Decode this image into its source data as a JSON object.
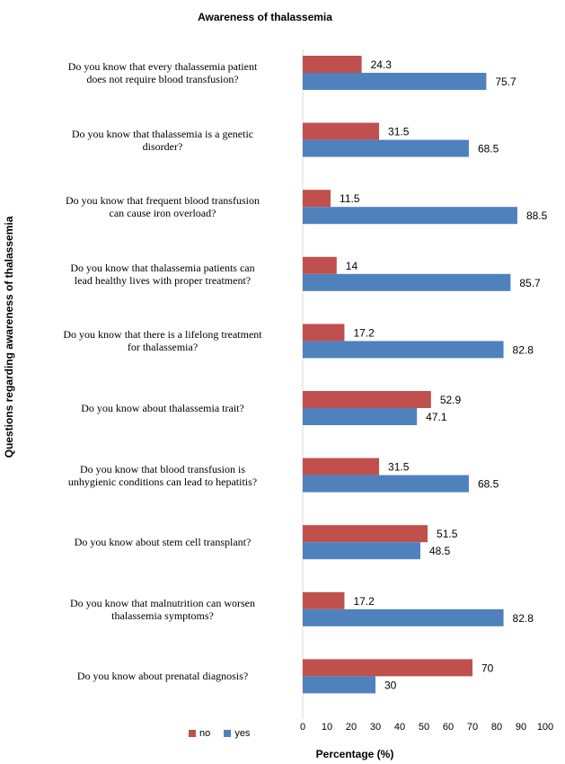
{
  "chart_data": {
    "type": "bar",
    "orientation": "horizontal",
    "title": "Awareness  of thalassemia",
    "xlabel": "Percentage  (%)",
    "ylabel": "Questions regarding awareness  of thalassemia",
    "xlim": [
      0,
      100
    ],
    "xticks": [
      "0",
      "10",
      "20",
      "30",
      "40",
      "50",
      "60",
      "70",
      "80",
      "90",
      "100"
    ],
    "categories": [
      [
        "Do you know that every thalassemia patient",
        "does not require blood transfusion?"
      ],
      [
        "Do you know that thalassemia is a genetic",
        "disorder?"
      ],
      [
        "Do you know that frequent  blood transfusion",
        "can cause iron overload?"
      ],
      [
        "Do you know that thalassemia patients can",
        "lead healthy lives with proper treatment?"
      ],
      [
        "Do you know that there  is a lifelong treatment",
        "for thalassemia?"
      ],
      [
        "Do you know about thalassemia trait?"
      ],
      [
        "Do you know that  blood transfusion  is",
        "unhygienic conditions can lead to hepatitis?"
      ],
      [
        "Do you know about stem cell transplant?"
      ],
      [
        "Do you know that  malnutrition can worsen",
        "thalassemia  symptoms?"
      ],
      [
        "Do you know about prenatal  diagnosis?"
      ]
    ],
    "series": [
      {
        "name": "no",
        "color": "#c0504d",
        "values": [
          24.3,
          31.5,
          11.5,
          14,
          17.2,
          52.9,
          31.5,
          51.5,
          17.2,
          70
        ],
        "labels": [
          "24.3",
          "31.5",
          "11.5",
          "14",
          "17.2",
          "52.9",
          "31.5",
          "51.5",
          "17.2",
          "70"
        ]
      },
      {
        "name": "yes",
        "color": "#4f81bd",
        "values": [
          75.7,
          68.5,
          88.5,
          85.7,
          82.8,
          47.1,
          68.5,
          48.5,
          82.8,
          30
        ],
        "labels": [
          "75.7",
          "68.5",
          "88.5",
          "85.7",
          "82.8",
          "47.1",
          "68.5",
          "48.5",
          "82.8",
          "30"
        ]
      }
    ],
    "legend_position": "bottom-left"
  }
}
